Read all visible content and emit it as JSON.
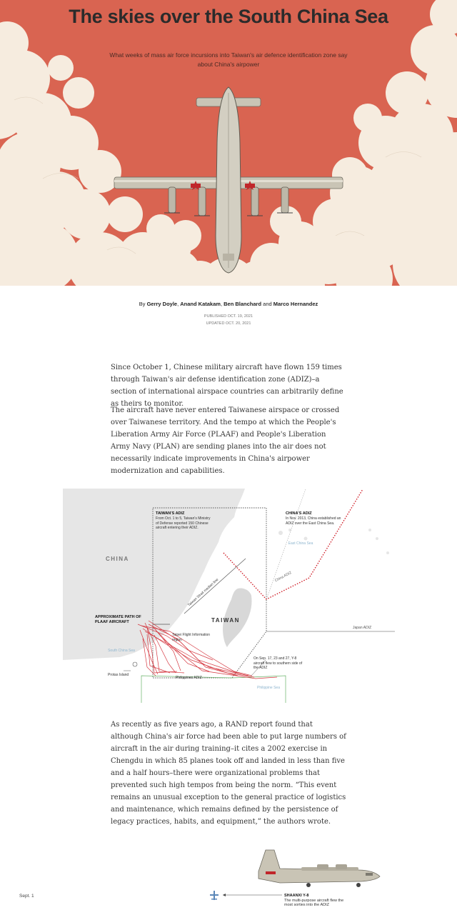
{
  "header": {
    "title": "The skies over the South China Sea",
    "subtitle": "What weeks of mass air force incursions into Taiwan's air defence identification zone say about China's airpower"
  },
  "byline": {
    "prefix": "By",
    "authors": [
      "Gerry Doyle",
      "Anand Katakam",
      "Ben Blanchard",
      "Marco Hernandez"
    ],
    "sep1": ", ",
    "sep2": ", ",
    "and": " and ",
    "published": "PUBLISHED OCT. 19, 2021",
    "updated": "UPDATED OCT. 20, 2021"
  },
  "body": {
    "p1": "Since October 1, Chinese military aircraft have flown 159 times through Taiwan's air defense identification zone (ADIZ)–a section of international airspace countries can arbitrarily define as theirs to monitor.",
    "p2": "The aircraft have never entered Taiwanese airspace or crossed over Taiwanese territory. And the tempo at which the People's Liberation Army Air Force (PLAAF) and People's Liberation Army Navy (PLAN) are sending planes into the air does not necessarily indicate improvements in China's airpower modernization and capabilities.",
    "p3": "As recently as five years ago, a RAND report found that although China's air force had been able to put large numbers of aircraft in the air during training–it cites a 2002 exercise in Chengdu in which 85 planes took off and landed in less than five and a half hours–there were organizational problems that prevented such high tempos from being the norm. “This event remains an unusual exception to the general practice of logistics and maintenance, which remains defined by the persistence of legacy practices, habits, and equipment,” the authors wrote."
  },
  "map": {
    "china": "CHINA",
    "taiwan": "TAIWAN",
    "taiwan_adiz_title": "TAIWAN'S ADIZ",
    "taiwan_adiz_text": "From Oct. 1 to 5, Taiwan's Ministry of Defense reported 150 Chinese aircraft entering their ADIZ.",
    "china_adiz_title": "CHINA'S ADIZ",
    "china_adiz_text": "In Nov. 2013, China established an ADIZ over the East China Sea.",
    "east_china_sea": "East China Sea",
    "china_adiz_line": "China ADIZ",
    "median_line": "Taiwan Strait median line",
    "path_title": "APPROXIMATE PATH OF PLAAF AIRCRAFT",
    "taipei_fir": "Taipei Flight Information region",
    "japan_adiz": "Japan ADIZ",
    "south_china_sea": "South China Sea",
    "protas": "Protas Island",
    "philippines_adiz": "Philippines ADIZ",
    "philippine_sea": "Philippine Sea",
    "y8_note": "On Sep. 17, 23 and 27, Y-8 aircraft flew to southern side of the ADIZ",
    "colors": {
      "land": "#e6e6e6",
      "path": "#d0202a",
      "adiz": "#555555",
      "philippines": "#6ab36a"
    }
  },
  "timeline": {
    "date": "Sept. 1",
    "aircraft_name": "SHAANXI Y-8",
    "aircraft_text": "The multi-purpose aircraft flew the most sorties into the ADIZ"
  },
  "colors": {
    "hero_bg": "#d96451",
    "cloud": "#f6ecdf"
  }
}
